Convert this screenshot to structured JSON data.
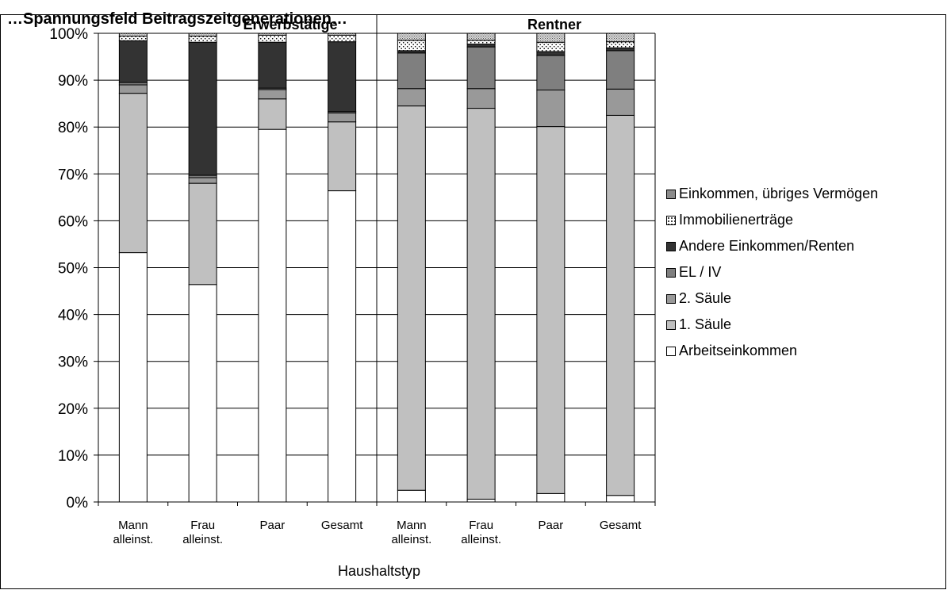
{
  "title": "…Spannungsfeld Beitragszeitgenerationen…",
  "chart_data": {
    "type": "bar",
    "stacked": true,
    "normalized": true,
    "title": "",
    "xlabel": "Haushaltstyp",
    "ylabel": "",
    "ylim": [
      0,
      100
    ],
    "yticks": [
      "0%",
      "10%",
      "20%",
      "30%",
      "40%",
      "50%",
      "60%",
      "70%",
      "80%",
      "90%",
      "100%"
    ],
    "groups": [
      {
        "label": "Erwerbstätige",
        "categories": [
          "Mann alleinst.",
          "Frau alleinst.",
          "Paar",
          "Gesamt"
        ]
      },
      {
        "label": "Rentner",
        "categories": [
          "Mann alleinst.",
          "Frau alleinst.",
          "Paar",
          "Gesamt"
        ]
      }
    ],
    "categories": [
      "Mann alleinst.",
      "Frau alleinst.",
      "Paar",
      "Gesamt",
      "Mann alleinst.",
      "Frau alleinst.",
      "Paar",
      "Gesamt"
    ],
    "series": [
      {
        "name": "Arbeitseinkommen",
        "color": "#ffffff",
        "pattern": "none",
        "values": [
          53.2,
          46.4,
          79.5,
          66.4,
          2.5,
          0.6,
          1.8,
          1.4
        ]
      },
      {
        "name": "1. Säule",
        "color": "#c0c0c0",
        "pattern": "none",
        "values": [
          34.0,
          21.6,
          6.5,
          14.7,
          82.0,
          83.4,
          78.3,
          81.1
        ]
      },
      {
        "name": "2. Säule",
        "color": "#999999",
        "pattern": "none",
        "values": [
          1.8,
          1.2,
          2.0,
          1.9,
          3.7,
          4.2,
          7.8,
          5.6
        ]
      },
      {
        "name": "EL / IV",
        "color": "#7f7f7f",
        "pattern": "none",
        "values": [
          0.5,
          0.5,
          0.3,
          0.3,
          7.6,
          8.9,
          7.4,
          8.2
        ]
      },
      {
        "name": "Andere Einkommen/Renten",
        "color": "#333333",
        "pattern": "none",
        "values": [
          8.9,
          28.4,
          9.8,
          14.9,
          0.5,
          0.6,
          0.8,
          0.6
        ]
      },
      {
        "name": "Immobilienerträge",
        "color": "#ffffff",
        "pattern": "dots",
        "values": [
          1.0,
          1.3,
          1.5,
          1.4,
          2.2,
          0.8,
          2.0,
          1.3
        ]
      },
      {
        "name": "Einkommen, übriges Vermögen",
        "color": "#cccccc",
        "pattern": "dense",
        "values": [
          0.6,
          0.6,
          0.4,
          0.4,
          1.5,
          1.5,
          1.9,
          1.8
        ]
      }
    ],
    "legend": {
      "position": "right",
      "order": "reverse"
    },
    "grid": true
  }
}
